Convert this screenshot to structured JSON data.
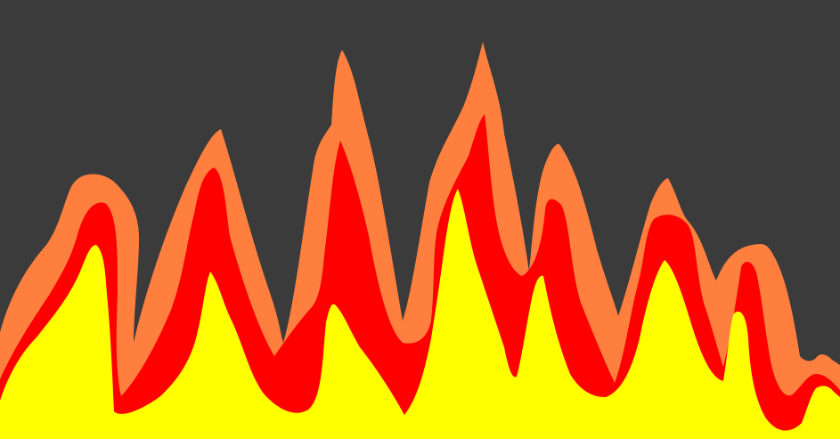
{
  "illustration": {
    "subject": "flames",
    "colors": {
      "background": "#3b3b3b",
      "outer_flame": "#ff7f3f",
      "middle_flame": "#ff0000",
      "inner_flame": "#ffff00"
    }
  }
}
